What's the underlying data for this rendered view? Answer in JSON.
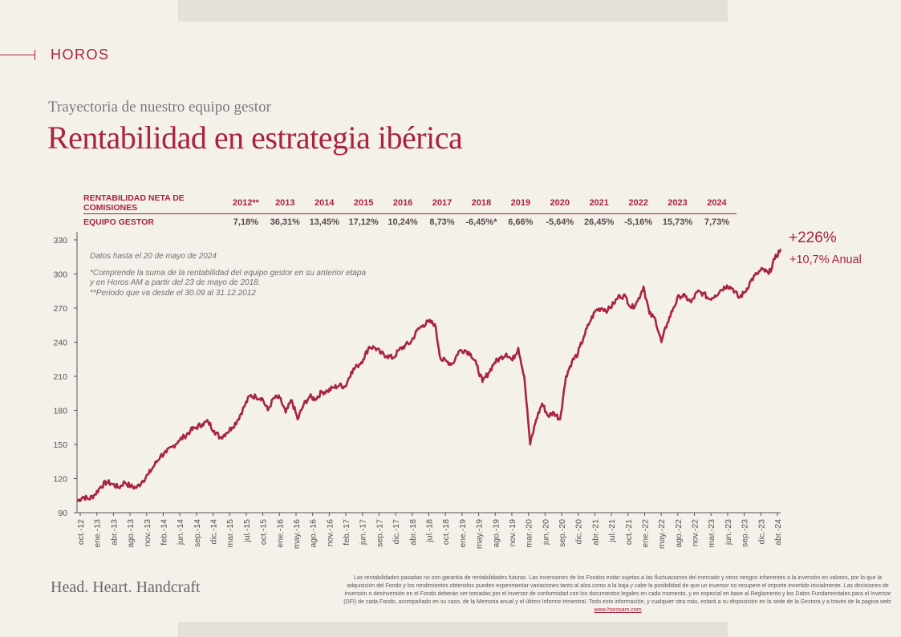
{
  "brand": "HOROS",
  "subtitle": "Trayectoria de nuestro equipo gestor",
  "title": "Rentabilidad en estrategia ibérica",
  "table": {
    "header_label": "RENTABILIDAD NETA DE COMISIONES",
    "row_label": "EQUIPO GESTOR",
    "years": [
      "2012**",
      "2013",
      "2014",
      "2015",
      "2016",
      "2017",
      "2018",
      "2019",
      "2020",
      "2021",
      "2022",
      "2023",
      "2024"
    ],
    "returns": [
      "7,18%",
      "36,31%",
      "13,45%",
      "17,12%",
      "10,24%",
      "8,73%",
      "-6,45%*",
      "6,66%",
      "-5,64%",
      "26,45%",
      "-5,16%",
      "15,73%",
      "7,73%"
    ]
  },
  "notes": {
    "date": "Datos hasta el  20 de mayo  de 2024",
    "note1a": "*Comprende la suma de la rentabilidad del equipo gestor en su anterior etapa",
    "note1b": "y en Horos AM a partir del 23 de mayo de 2018.",
    "note2": "**Periodo que va desde el 30.09 al 31.12.2012"
  },
  "total_return": "+226%",
  "annual_return": "+10,7% Anual",
  "motto": "Head. Heart. Handcraft",
  "disclaimer": "Las rentabilidades pasadas no son garantía de rentabilidades futuras. Las inversiones de los Fondos están sujetas a las fluctuaciones del mercado y otros riesgos inherentes a la inversión en valores, por lo que la adquisición del Fondo y los rendimientos obtenidos pueden experimentar variaciones tanto al alza como a la baja y cabe la posibilidad de que un inversor no recupere el importe invertido inicialmente. Las decisiones de inversión o desinversión en el Fondo deberán ser tomadas por el inversor de conformidad con los documentos legales en cada momento, y en especial en base al Reglamento y los Datos Fundamentales para el Inversor (DFI) de cada Fondo, acompañado en su caso, de la Memoria anual y el último Informe trimestral. Todo esto información, y cualquier otra más, estará a su disposición en la sede de la Gestora y a través de la pagina web:",
  "disclaimer_link": "www.horosam.com",
  "colors": {
    "accent": "#a9243d",
    "background": "#f4f0ea"
  },
  "chart_data": {
    "type": "line",
    "title": "Rentabilidad en estrategia ibérica",
    "xlabel": "",
    "ylabel": "",
    "ylim": [
      90,
      330
    ],
    "yticks": [
      90,
      120,
      150,
      180,
      210,
      240,
      270,
      300,
      330
    ],
    "x_tick_labels": [
      "oct.-12",
      "ene.-13",
      "abr.-13",
      "ago.-13",
      "nov.-13",
      "feb.-14",
      "jun.-14",
      "sep.-14",
      "dic.-14",
      "mar.-15",
      "jul.-15",
      "oct.-15",
      "ene.-16",
      "may.-16",
      "ago.-16",
      "nov.-16",
      "feb.-17",
      "jun.-17",
      "sep.-17",
      "dic.-17",
      "abr.-18",
      "jul.-18",
      "oct.-18",
      "ene.-19",
      "may.-19",
      "ago.-19",
      "nov.-19",
      "mar.-20",
      "jun.-20",
      "sep.-20",
      "dic.-20",
      "abr.-21",
      "jul.-21",
      "oct.-21",
      "ene.-22",
      "may.-22",
      "ago.-22",
      "nov.-22",
      "mar.-23",
      "jun.-23",
      "sep.-23",
      "dic.-23",
      "abr.-24"
    ],
    "series": [
      {
        "name": "Equipo gestor",
        "points": [
          [
            0,
            100
          ],
          [
            1,
            104
          ],
          [
            2,
            102
          ],
          [
            3,
            106
          ],
          [
            4,
            113
          ],
          [
            5,
            117
          ],
          [
            6,
            115
          ],
          [
            7,
            112
          ],
          [
            8,
            117
          ],
          [
            9,
            113
          ],
          [
            10,
            112
          ],
          [
            11,
            118
          ],
          [
            12,
            124
          ],
          [
            13,
            132
          ],
          [
            14,
            140
          ],
          [
            15,
            143
          ],
          [
            16,
            148
          ],
          [
            17,
            153
          ],
          [
            18,
            157
          ],
          [
            19,
            162
          ],
          [
            20,
            165
          ],
          [
            21,
            168
          ],
          [
            22,
            170
          ],
          [
            23,
            162
          ],
          [
            24,
            156
          ],
          [
            25,
            160
          ],
          [
            26,
            165
          ],
          [
            27,
            172
          ],
          [
            28,
            183
          ],
          [
            29,
            193
          ],
          [
            30,
            192
          ],
          [
            31,
            191
          ],
          [
            32,
            180
          ],
          [
            33,
            191
          ],
          [
            34,
            191
          ],
          [
            35,
            178
          ],
          [
            36,
            189
          ],
          [
            37,
            172
          ],
          [
            38,
            185
          ],
          [
            39,
            192
          ],
          [
            40,
            190
          ],
          [
            41,
            196
          ],
          [
            42,
            197
          ],
          [
            43,
            200
          ],
          [
            44,
            202
          ],
          [
            45,
            201
          ],
          [
            46,
            214
          ],
          [
            47,
            219
          ],
          [
            48,
            225
          ],
          [
            49,
            236
          ],
          [
            50,
            235
          ],
          [
            51,
            230
          ],
          [
            52,
            228
          ],
          [
            53,
            226
          ],
          [
            54,
            233
          ],
          [
            55,
            237
          ],
          [
            56,
            240
          ],
          [
            57,
            250
          ],
          [
            58,
            255
          ],
          [
            59,
            258
          ],
          [
            60,
            256
          ],
          [
            61,
            225
          ],
          [
            62,
            223
          ],
          [
            63,
            221
          ],
          [
            64,
            232
          ],
          [
            65,
            233
          ],
          [
            66,
            230
          ],
          [
            67,
            220
          ],
          [
            68,
            205
          ],
          [
            69,
            213
          ],
          [
            70,
            222
          ],
          [
            71,
            226
          ],
          [
            72,
            230
          ],
          [
            73,
            224
          ],
          [
            74,
            235
          ],
          [
            75,
            210
          ],
          [
            76,
            150
          ],
          [
            77,
            172
          ],
          [
            78,
            186
          ],
          [
            79,
            175
          ],
          [
            80,
            178
          ],
          [
            81,
            172
          ],
          [
            82,
            210
          ],
          [
            83,
            223
          ],
          [
            84,
            230
          ],
          [
            85,
            245
          ],
          [
            86,
            258
          ],
          [
            87,
            268
          ],
          [
            88,
            270
          ],
          [
            89,
            268
          ],
          [
            90,
            274
          ],
          [
            91,
            281
          ],
          [
            92,
            280
          ],
          [
            93,
            270
          ],
          [
            94,
            276
          ],
          [
            95,
            289
          ],
          [
            96,
            265
          ],
          [
            97,
            260
          ],
          [
            98,
            240
          ],
          [
            99,
            257
          ],
          [
            100,
            270
          ],
          [
            101,
            281
          ],
          [
            102,
            280
          ],
          [
            103,
            275
          ],
          [
            104,
            284
          ],
          [
            105,
            283
          ],
          [
            106,
            278
          ],
          [
            107,
            281
          ],
          [
            108,
            286
          ],
          [
            109,
            290
          ],
          [
            110,
            287
          ],
          [
            111,
            279
          ],
          [
            112,
            284
          ],
          [
            113,
            294
          ],
          [
            114,
            300
          ],
          [
            115,
            304
          ],
          [
            116,
            300
          ],
          [
            117,
            313
          ],
          [
            118,
            322
          ]
        ]
      }
    ]
  }
}
